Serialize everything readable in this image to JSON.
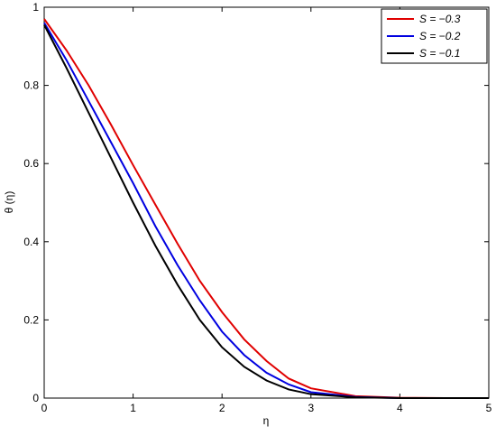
{
  "chart_data": {
    "type": "line",
    "x_label": "η",
    "y_label": "θ (η)",
    "x": [
      0,
      0.25,
      0.5,
      0.75,
      1,
      1.25,
      1.5,
      1.75,
      2,
      2.25,
      2.5,
      2.75,
      3,
      3.5,
      4,
      4.5,
      5
    ],
    "series": [
      {
        "name": "S = −0.3",
        "color": "#e00000",
        "values": [
          0.97,
          0.89,
          0.8,
          0.7,
          0.596,
          0.495,
          0.395,
          0.3,
          0.22,
          0.15,
          0.095,
          0.05,
          0.025,
          0.005,
          0.001,
          0,
          0
        ]
      },
      {
        "name": "S = −0.2",
        "color": "#0000e0",
        "values": [
          0.96,
          0.865,
          0.76,
          0.655,
          0.55,
          0.44,
          0.34,
          0.25,
          0.17,
          0.11,
          0.065,
          0.035,
          0.015,
          0.003,
          0,
          0,
          0
        ]
      },
      {
        "name": "S = −0.1",
        "color": "#000000",
        "values": [
          0.955,
          0.845,
          0.73,
          0.615,
          0.5,
          0.39,
          0.29,
          0.2,
          0.13,
          0.08,
          0.045,
          0.022,
          0.01,
          0.002,
          0,
          0,
          0
        ]
      }
    ],
    "xlim": [
      0,
      5
    ],
    "ylim": [
      0,
      1
    ],
    "xticks": [
      0,
      1,
      2,
      3,
      4,
      5
    ],
    "yticks": [
      0,
      0.2,
      0.4,
      0.6,
      0.8,
      1
    ],
    "legend": "top-right",
    "grid": false
  }
}
